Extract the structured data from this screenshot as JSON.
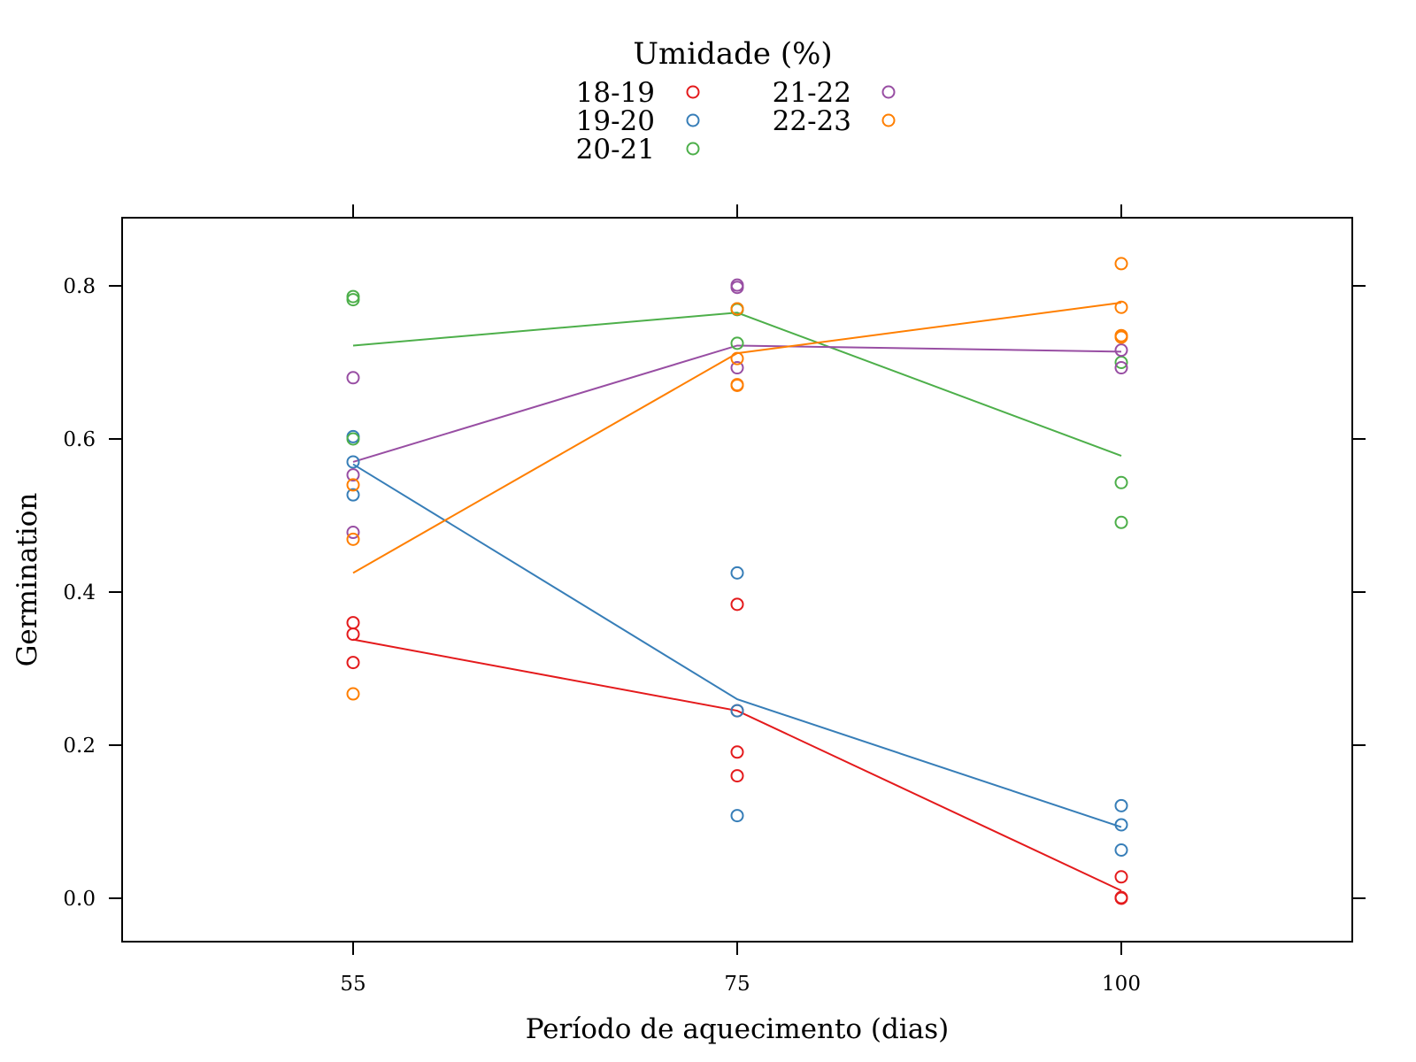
{
  "chart_data": {
    "type": "scatter",
    "title": "",
    "xlabel": "Período de aquecimento (dias)",
    "ylabel": "Germination",
    "legend": {
      "title": "Umidade (%)",
      "placement": "top"
    },
    "x_categories": [
      "55",
      "75",
      "100"
    ],
    "ylim": [
      -0.058,
      0.888
    ],
    "y_ticks": [
      "0.0",
      "0.2",
      "0.4",
      "0.6",
      "0.8"
    ],
    "y_tick_values": [
      0.0,
      0.2,
      0.4,
      0.6,
      0.8
    ],
    "grid": false,
    "series": [
      {
        "name": "18-19",
        "color": "#e41a1c",
        "points": [
          [
            "55",
            0.36
          ],
          [
            "55",
            0.345
          ],
          [
            "55",
            0.308
          ],
          [
            "75",
            0.384
          ],
          [
            "75",
            0.245
          ],
          [
            "75",
            0.191
          ],
          [
            "75",
            0.16
          ],
          [
            "100",
            0.028
          ],
          [
            "100",
            0.001
          ],
          [
            "100",
            0.0
          ]
        ],
        "line": [
          [
            "55",
            0.338
          ],
          [
            "75",
            0.245
          ],
          [
            "100",
            0.01
          ]
        ]
      },
      {
        "name": "19-20",
        "color": "#377eb8",
        "points": [
          [
            "55",
            0.603
          ],
          [
            "55",
            0.57
          ],
          [
            "55",
            0.527
          ],
          [
            "75",
            0.425
          ],
          [
            "75",
            0.245
          ],
          [
            "75",
            0.108
          ],
          [
            "100",
            0.121
          ],
          [
            "100",
            0.096
          ],
          [
            "100",
            0.063
          ]
        ],
        "line": [
          [
            "55",
            0.567
          ],
          [
            "75",
            0.26
          ],
          [
            "100",
            0.093
          ]
        ]
      },
      {
        "name": "20-21",
        "color": "#4daf4a",
        "points": [
          [
            "55",
            0.786
          ],
          [
            "55",
            0.782
          ],
          [
            "55",
            0.6
          ],
          [
            "75",
            0.77
          ],
          [
            "75",
            0.769
          ],
          [
            "75",
            0.725
          ],
          [
            "100",
            0.7
          ],
          [
            "100",
            0.543
          ],
          [
            "100",
            0.491
          ]
        ],
        "line": [
          [
            "55",
            0.722
          ],
          [
            "75",
            0.765
          ],
          [
            "100",
            0.578
          ]
        ]
      },
      {
        "name": "21-22",
        "color": "#984ea3",
        "points": [
          [
            "55",
            0.68
          ],
          [
            "55",
            0.553
          ],
          [
            "55",
            0.478
          ],
          [
            "75",
            0.801
          ],
          [
            "75",
            0.798
          ],
          [
            "75",
            0.693
          ],
          [
            "100",
            0.716
          ],
          [
            "100",
            0.693
          ]
        ],
        "line": [
          [
            "55",
            0.57
          ],
          [
            "75",
            0.722
          ],
          [
            "100",
            0.714
          ]
        ]
      },
      {
        "name": "22-23",
        "color": "#ff7f00",
        "points": [
          [
            "55",
            0.54
          ],
          [
            "55",
            0.469
          ],
          [
            "55",
            0.267
          ],
          [
            "75",
            0.77
          ],
          [
            "75",
            0.705
          ],
          [
            "75",
            0.671
          ],
          [
            "75",
            0.67
          ],
          [
            "100",
            0.829
          ],
          [
            "100",
            0.772
          ],
          [
            "100",
            0.735
          ],
          [
            "100",
            0.733
          ]
        ],
        "line": [
          [
            "55",
            0.425
          ],
          [
            "75",
            0.712
          ],
          [
            "100",
            0.778
          ]
        ]
      }
    ]
  }
}
